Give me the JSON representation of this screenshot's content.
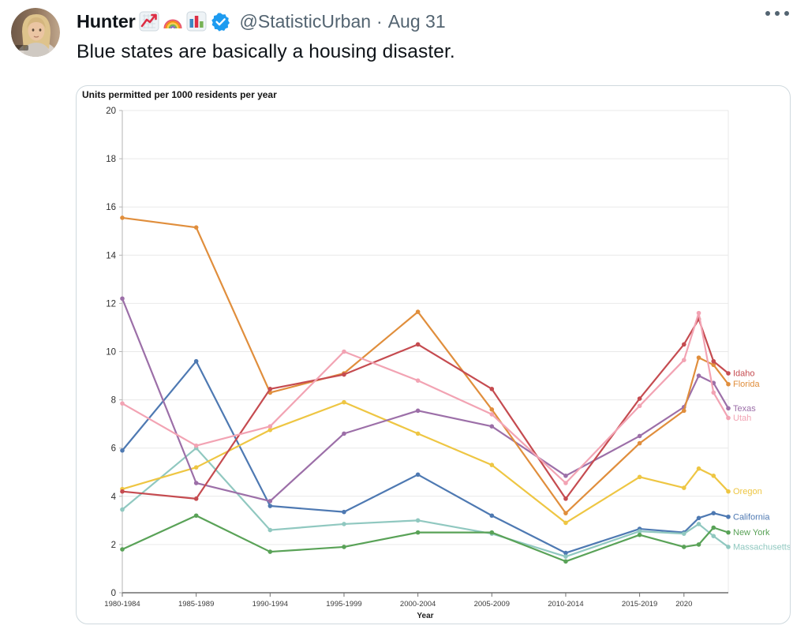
{
  "tweet": {
    "display_name": "Hunter",
    "handle": "@StatisticUrban",
    "separator": "·",
    "date": "Aug 31",
    "body": "Blue states are basically a housing disaster."
  },
  "icons": {
    "after_name": [
      "chart-increasing-icon",
      "rainbow-icon",
      "bar-chart-icon"
    ],
    "verified": "verified-badge-icon",
    "more": "more-horizontal-icon",
    "verified_color": "#1d9bf0"
  },
  "chart_data": {
    "type": "line",
    "title": "Units permitted per 1000 residents per year",
    "xlabel": "Year",
    "ylabel": "",
    "ylim": [
      0,
      20
    ],
    "y_ticks": [
      0,
      2,
      4,
      6,
      8,
      10,
      12,
      14,
      16,
      18,
      20
    ],
    "grid": true,
    "legend_position": "right-end-labels",
    "categories": [
      "1980-1984",
      "1985-1989",
      "1990-1994",
      "1995-1999",
      "2000-2004",
      "2005-2009",
      "2010-2014",
      "2015-2019",
      "2020",
      "2021",
      "2022",
      "2023"
    ],
    "x_tick_labels": [
      "1980-1984",
      "1985-1989",
      "1990-1994",
      "1995-1999",
      "2000-2004",
      "2005-2009",
      "2010-2014",
      "2015-2019",
      "2020"
    ],
    "x_years": [
      1982,
      1987,
      1992,
      1997,
      2002,
      2007,
      2012,
      2017,
      2020,
      2021,
      2022,
      2023
    ],
    "x_year_range": [
      1982,
      2023
    ],
    "series": [
      {
        "name": "California",
        "color": "#4e79b2",
        "values": [
          5.9,
          9.6,
          3.6,
          3.35,
          4.9,
          3.2,
          1.65,
          2.65,
          2.5,
          3.1,
          3.3,
          3.15
        ]
      },
      {
        "name": "Massachusetts",
        "color": "#90c8c0",
        "values": [
          3.45,
          6.0,
          2.6,
          2.85,
          3.0,
          2.45,
          1.5,
          2.55,
          2.45,
          2.85,
          2.35,
          1.9
        ]
      },
      {
        "name": "New York",
        "color": "#59a257",
        "values": [
          1.8,
          3.2,
          1.7,
          1.9,
          2.5,
          2.5,
          1.3,
          2.4,
          1.9,
          2.0,
          2.7,
          2.5
        ]
      },
      {
        "name": "Oregon",
        "color": "#eec643",
        "values": [
          4.3,
          5.2,
          6.75,
          7.9,
          6.6,
          5.3,
          2.9,
          4.8,
          4.35,
          5.15,
          4.85,
          4.2
        ]
      },
      {
        "name": "Texas",
        "color": "#9c6fa8",
        "values": [
          12.2,
          4.55,
          3.8,
          6.6,
          7.55,
          6.9,
          4.85,
          6.5,
          7.7,
          9.0,
          8.7,
          7.65
        ]
      },
      {
        "name": "Florida",
        "color": "#e08e3c",
        "values": [
          15.55,
          15.15,
          8.3,
          9.1,
          11.65,
          7.6,
          3.3,
          6.2,
          7.55,
          9.75,
          9.45,
          8.65
        ]
      },
      {
        "name": "Idaho",
        "color": "#c54b50",
        "values": [
          4.2,
          3.9,
          8.45,
          9.05,
          10.3,
          8.45,
          3.9,
          8.05,
          10.3,
          11.35,
          9.6,
          9.1
        ]
      },
      {
        "name": "Utah",
        "color": "#f2a3b3",
        "values": [
          7.85,
          6.1,
          6.9,
          10.0,
          8.8,
          7.4,
          4.55,
          7.75,
          9.65,
          11.6,
          8.3,
          7.25
        ]
      }
    ]
  }
}
